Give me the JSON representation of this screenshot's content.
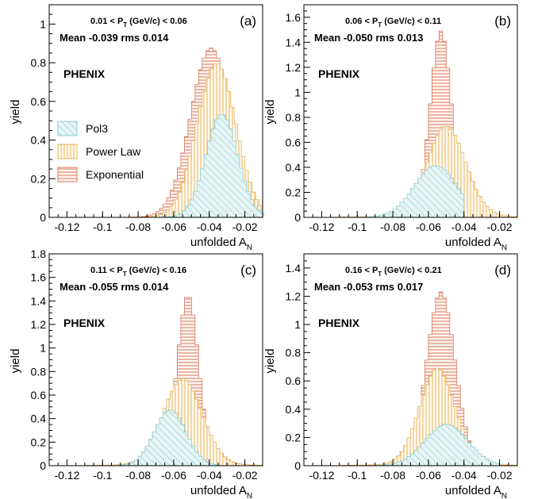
{
  "chart_data": [
    {
      "type": "histogram",
      "panel_label": "(a)",
      "pt_range": {
        "low": "0.01",
        "high": "0.06",
        "unit": "(GeV/c)"
      },
      "stats_text": "Mean -0.039 rms 0.014",
      "experiment": "PHENIX",
      "xlabel": "unfolded A",
      "xlabel_sub": "N",
      "ylabel": "yield",
      "xlim": [
        -0.13,
        -0.01
      ],
      "ylim": [
        0,
        1.1
      ],
      "yticks": [
        "0",
        "0.2",
        "0.4",
        "0.6",
        "0.8",
        "1"
      ],
      "xticks": [
        "-0.12",
        "-0.1",
        "-0.08",
        "-0.06",
        "-0.04",
        "-0.02"
      ],
      "legend": [
        "Pol3",
        "Power Law",
        "Exponential"
      ],
      "series": [
        {
          "name": "Pol3",
          "color": "#8fcfcf",
          "mean": -0.033,
          "sigma": 0.009,
          "peak": 0.53,
          "tail": 0.004,
          "xmin": -0.075,
          "xmax": -0.01
        },
        {
          "name": "Power Law",
          "color": "#e8b25a",
          "mean": -0.036,
          "sigma": 0.011,
          "peak": 0.79,
          "tail": 0.008,
          "xmin": -0.11,
          "xmax": -0.01
        },
        {
          "name": "Exponential",
          "color": "#d9775a",
          "mean": -0.039,
          "sigma": 0.0115,
          "peak": 0.87,
          "tail": 0.006,
          "xmin": -0.11,
          "xmax": -0.01
        }
      ]
    },
    {
      "type": "histogram",
      "panel_label": "(b)",
      "pt_range": {
        "low": "0.06",
        "high": "0.11",
        "unit": "(GeV/c)"
      },
      "stats_text": "Mean -0.050 rms 0.013",
      "experiment": "PHENIX",
      "xlabel": "unfolded A",
      "xlabel_sub": "N",
      "ylabel": "yield",
      "xlim": [
        -0.13,
        -0.01
      ],
      "ylim": [
        0,
        1.7
      ],
      "yticks": [
        "0",
        "0.2",
        "0.4",
        "0.6",
        "0.8",
        "1",
        "1.2",
        "1.4",
        "1.6"
      ],
      "xticks": [
        "-0.12",
        "-0.1",
        "-0.08",
        "-0.06",
        "-0.04",
        "-0.02"
      ],
      "series": [
        {
          "name": "Pol3",
          "color": "#8fcfcf",
          "mean": -0.056,
          "sigma": 0.012,
          "peak": 0.41,
          "tail": 0.004,
          "xmin": -0.1,
          "xmax": -0.04
        },
        {
          "name": "Power Law",
          "color": "#e8b25a",
          "mean": -0.05,
          "sigma": 0.011,
          "peak": 0.7,
          "tail": 0.03,
          "xmin": -0.11,
          "xmax": -0.01
        },
        {
          "name": "Exponential",
          "color": "#d9775a",
          "mean": -0.053,
          "sigma": 0.006,
          "peak": 1.46,
          "tail": 0.03,
          "xmin": -0.11,
          "xmax": -0.01
        }
      ]
    },
    {
      "type": "histogram",
      "panel_label": "(c)",
      "pt_range": {
        "low": "0.11",
        "high": "0.16",
        "unit": "(GeV/c)"
      },
      "stats_text": "Mean -0.055 rms 0.014",
      "experiment": "PHENIX",
      "xlabel": "unfolded A",
      "xlabel_sub": "N",
      "ylabel": "yield",
      "xlim": [
        -0.13,
        -0.01
      ],
      "ylim": [
        0,
        1.8
      ],
      "yticks": [
        "0",
        "0.2",
        "0.4",
        "0.6",
        "0.8",
        "1",
        "1.2",
        "1.4",
        "1.6",
        "1.8"
      ],
      "xticks": [
        "-0.12",
        "-0.1",
        "-0.08",
        "-0.06",
        "-0.04",
        "-0.02"
      ],
      "series": [
        {
          "name": "Pol3",
          "color": "#8fcfcf",
          "mean": -0.062,
          "sigma": 0.009,
          "peak": 0.47,
          "tail": 0.004,
          "xmin": -0.1,
          "xmax": -0.035
        },
        {
          "name": "Power Law",
          "color": "#e8b25a",
          "mean": -0.055,
          "sigma": 0.011,
          "peak": 0.71,
          "tail": 0.03,
          "xmin": -0.11,
          "xmax": -0.01
        },
        {
          "name": "Exponential",
          "color": "#d9775a",
          "mean": -0.052,
          "sigma": 0.006,
          "peak": 1.42,
          "tail": 0.03,
          "xmin": -0.11,
          "xmax": -0.01
        }
      ]
    },
    {
      "type": "histogram",
      "panel_label": "(d)",
      "pt_range": {
        "low": "0.16",
        "high": "0.21",
        "unit": "(GeV/c)"
      },
      "stats_text": "Mean -0.053 rms 0.017",
      "experiment": "PHENIX",
      "xlabel": "unfolded A",
      "xlabel_sub": "N",
      "ylabel": "yield",
      "xlim": [
        -0.13,
        -0.01
      ],
      "ylim": [
        0,
        1.5
      ],
      "yticks": [
        "0",
        "0.2",
        "0.4",
        "0.6",
        "0.8",
        "1",
        "1.2",
        "1.4"
      ],
      "xticks": [
        "-0.12",
        "-0.1",
        "-0.08",
        "-0.06",
        "-0.04",
        "-0.02"
      ],
      "series": [
        {
          "name": "Pol3",
          "color": "#8fcfcf",
          "mean": -0.05,
          "sigma": 0.012,
          "peak": 0.29,
          "tail": 0.004,
          "xmin": -0.09,
          "xmax": -0.02
        },
        {
          "name": "Power Law",
          "color": "#e8b25a",
          "mean": -0.055,
          "sigma": 0.01,
          "peak": 0.66,
          "tail": 0.03,
          "xmin": -0.11,
          "xmax": -0.01
        },
        {
          "name": "Exponential",
          "color": "#d9775a",
          "mean": -0.053,
          "sigma": 0.008,
          "peak": 1.2,
          "tail": 0.03,
          "xmin": -0.11,
          "xmax": -0.01
        }
      ]
    }
  ]
}
